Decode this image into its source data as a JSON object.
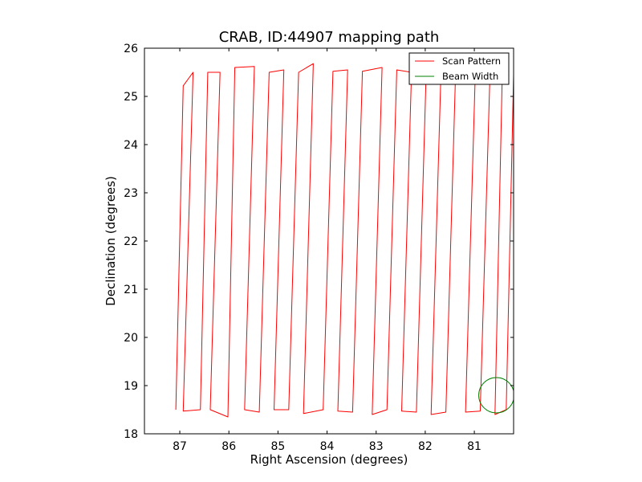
{
  "chart_data": {
    "type": "line",
    "title": "CRAB, ID:44907 mapping path",
    "xlabel": "Right Ascension (degrees)",
    "ylabel": "Declination (degrees)",
    "x_inverted": true,
    "xlim": [
      87.72,
      80.2
    ],
    "ylim": [
      18,
      26
    ],
    "xticks": [
      87,
      86,
      85,
      84,
      83,
      82,
      81
    ],
    "yticks": [
      18,
      19,
      20,
      21,
      22,
      23,
      24,
      25,
      26
    ],
    "grid": false,
    "legend_position": "top-right",
    "series": [
      {
        "name": "Scan Pattern",
        "color": "#ff0000",
        "scan_legs": [
          {
            "x_lo": 87.08,
            "x_hi": 86.93,
            "y_lo": 18.5,
            "y_hi": 25.22
          },
          {
            "x_lo": 86.93,
            "x_hi": 86.73,
            "y_lo": 18.47,
            "y_hi": 25.5
          },
          {
            "x_lo": 86.58,
            "x_hi": 86.43,
            "y_lo": 18.5,
            "y_hi": 25.5
          },
          {
            "x_lo": 86.38,
            "x_hi": 86.18,
            "y_lo": 18.5,
            "y_hi": 25.5
          },
          {
            "x_lo": 86.02,
            "x_hi": 85.88,
            "y_lo": 18.35,
            "y_hi": 25.6
          },
          {
            "x_lo": 85.68,
            "x_hi": 85.48,
            "y_lo": 18.5,
            "y_hi": 25.62
          },
          {
            "x_lo": 85.38,
            "x_hi": 85.18,
            "y_lo": 18.45,
            "y_hi": 25.5
          },
          {
            "x_lo": 85.08,
            "x_hi": 84.88,
            "y_lo": 18.5,
            "y_hi": 25.55
          },
          {
            "x_lo": 84.78,
            "x_hi": 84.58,
            "y_lo": 18.5,
            "y_hi": 25.5
          },
          {
            "x_lo": 84.48,
            "x_hi": 84.28,
            "y_lo": 18.42,
            "y_hi": 25.68
          },
          {
            "x_lo": 84.08,
            "x_hi": 83.88,
            "y_lo": 18.5,
            "y_hi": 25.52
          },
          {
            "x_lo": 83.78,
            "x_hi": 83.58,
            "y_lo": 18.47,
            "y_hi": 25.55
          },
          {
            "x_lo": 83.48,
            "x_hi": 83.28,
            "y_lo": 18.45,
            "y_hi": 25.52
          },
          {
            "x_lo": 83.08,
            "x_hi": 82.88,
            "y_lo": 18.4,
            "y_hi": 25.6
          },
          {
            "x_lo": 82.78,
            "x_hi": 82.58,
            "y_lo": 18.5,
            "y_hi": 25.55
          },
          {
            "x_lo": 82.48,
            "x_hi": 82.28,
            "y_lo": 18.47,
            "y_hi": 25.5
          },
          {
            "x_lo": 82.18,
            "x_hi": 81.98,
            "y_lo": 18.45,
            "y_hi": 25.52
          },
          {
            "x_lo": 81.88,
            "x_hi": 81.68,
            "y_lo": 18.4,
            "y_hi": 25.5
          },
          {
            "x_lo": 81.58,
            "x_hi": 81.38,
            "y_lo": 18.45,
            "y_hi": 25.55
          },
          {
            "x_lo": 81.18,
            "x_hi": 80.98,
            "y_lo": 18.45,
            "y_hi": 25.5
          },
          {
            "x_lo": 80.88,
            "x_hi": 80.68,
            "y_lo": 18.47,
            "y_hi": 25.5
          },
          {
            "x_lo": 80.58,
            "x_hi": 80.43,
            "y_lo": 18.4,
            "y_hi": 25.48
          },
          {
            "x_lo": 80.35,
            "x_hi": 80.2,
            "y_lo": 18.5,
            "y_hi": 25.45
          }
        ]
      },
      {
        "name": "Beam Width",
        "color": "#008000",
        "shape": "circle",
        "center": [
          80.55,
          18.8
        ],
        "radius_deg": 0.36
      }
    ]
  }
}
